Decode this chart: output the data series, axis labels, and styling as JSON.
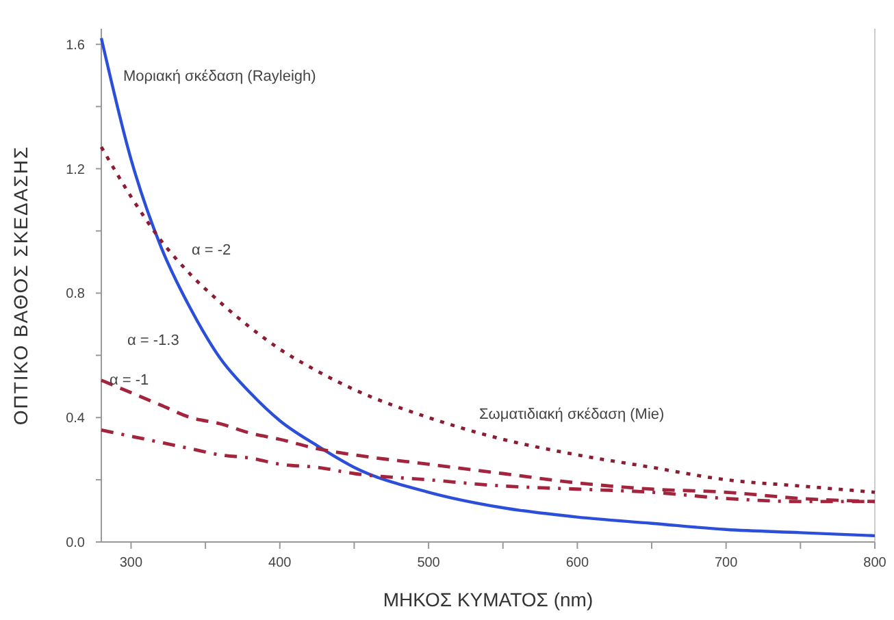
{
  "chart_data": {
    "type": "line",
    "xlabel": "ΜΗΚΟΣ ΚΥΜΑΤΟΣ (nm)",
    "ylabel": "ΟΠΤΙΚΟ ΒΑΘΟΣ ΣΚΕΔΑΣΗΣ",
    "x": [
      280,
      300,
      320,
      340,
      360,
      380,
      400,
      425,
      450,
      500,
      550,
      600,
      650,
      700,
      750,
      800
    ],
    "series": [
      {
        "color": "#2b4fd8",
        "line_style": "solid",
        "values": [
          1.62,
          1.23,
          0.95,
          0.75,
          0.59,
          0.48,
          0.39,
          0.31,
          0.24,
          0.16,
          0.11,
          0.08,
          0.06,
          0.04,
          0.03,
          0.02
        ]
      },
      {
        "color": "#8c1c34",
        "line_style": "dotted",
        "values": [
          1.27,
          1.11,
          0.97,
          0.86,
          0.77,
          0.69,
          0.62,
          0.55,
          0.49,
          0.4,
          0.33,
          0.28,
          0.24,
          0.2,
          0.18,
          0.16
        ]
      },
      {
        "color": "#a3243d",
        "line_style": "dashed",
        "values": [
          0.52,
          0.48,
          0.44,
          0.4,
          0.38,
          0.35,
          0.33,
          0.3,
          0.28,
          0.25,
          0.22,
          0.19,
          0.17,
          0.16,
          0.14,
          0.13
        ]
      },
      {
        "color": "#a3243d",
        "line_style": "dashdot",
        "values": [
          0.36,
          0.34,
          0.32,
          0.3,
          0.28,
          0.27,
          0.25,
          0.24,
          0.22,
          0.2,
          0.18,
          0.17,
          0.16,
          0.14,
          0.13,
          0.13
        ]
      }
    ],
    "xlim": [
      280,
      800
    ],
    "xticks": [
      300,
      {
        "value": 350,
        "label": null
      },
      400,
      {
        "value": 450,
        "label": null
      },
      500,
      {
        "value": 550,
        "label": null
      },
      600,
      {
        "value": 650,
        "label": null
      },
      700,
      {
        "value": 750,
        "label": null
      },
      800
    ],
    "ylim": [
      0,
      1.65
    ],
    "yticks": [
      {
        "value": 0,
        "label": "0.0"
      },
      {
        "value": 0.2,
        "label": null
      },
      0.4,
      {
        "value": 0.6,
        "label": null
      },
      0.8,
      {
        "value": 1,
        "label": null
      },
      1.2,
      {
        "value": 1.4,
        "label": null
      },
      1.6
    ],
    "grid": false,
    "annotations": [
      "Μοριακή σκέδαση (Rayleigh)",
      "α = -2",
      "α = -1.3",
      "α = -1",
      "Σωματιδιακή σκέδαση (Mie)"
    ]
  }
}
